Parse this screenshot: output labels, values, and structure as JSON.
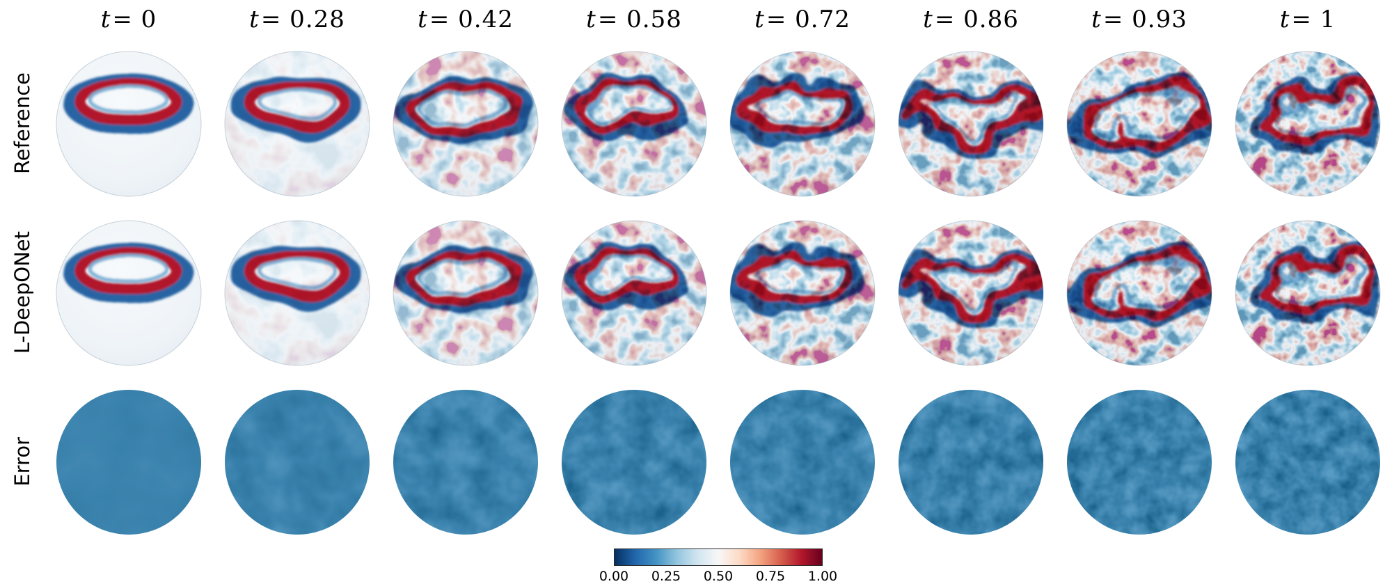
{
  "figure": {
    "columns": [
      {
        "label": "t = 0",
        "t": 0
      },
      {
        "label": "t = 0.28",
        "t": 0.28
      },
      {
        "label": "t = 0.42",
        "t": 0.42
      },
      {
        "label": "t = 0.58",
        "t": 0.58
      },
      {
        "label": "t = 0.72",
        "t": 0.72
      },
      {
        "label": "t = 0.86",
        "t": 0.86
      },
      {
        "label": "t = 0.93",
        "t": 0.93
      },
      {
        "label": "t = 1",
        "t": 1
      }
    ],
    "rows": [
      {
        "label": "Reference",
        "key": "reference"
      },
      {
        "label": "L-DeepONet",
        "key": "l-deeponet"
      },
      {
        "label": "Error",
        "key": "error"
      }
    ],
    "colorbar": {
      "ticks": [
        "0.00",
        "0.25",
        "0.50",
        "0.75",
        "1.00"
      ],
      "min": 0,
      "max": 1,
      "stops": [
        "#053061",
        "#2166ac",
        "#4393c3",
        "#92c5de",
        "#d1e5f0",
        "#f7f7f7",
        "#fddbc7",
        "#f4a582",
        "#d6604d",
        "#b2182b",
        "#67001f"
      ]
    }
  }
}
